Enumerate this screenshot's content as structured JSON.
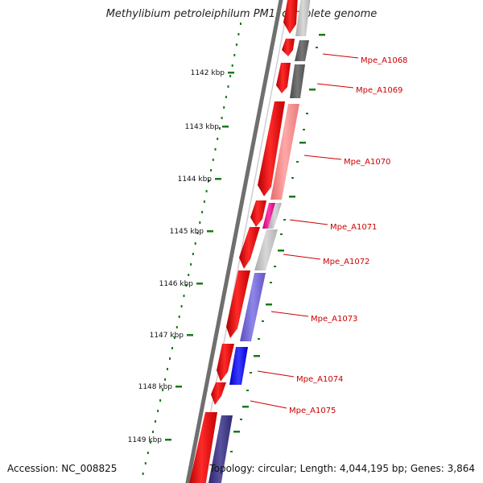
{
  "title": "Methylibium petroleiphilum PM1, complete genome",
  "footer": {
    "accession": "Accession: NC_008825",
    "topology": "Topology: circular; Length: 4,044,195 bp; Genes: 3,864"
  },
  "scale_labels": [
    "1142 kbp",
    "1143 kbp",
    "1144 kbp",
    "1145 kbp",
    "1146 kbp",
    "1147 kbp",
    "1148 kbp",
    "1149 kbp"
  ],
  "gene_labels": [
    "Mpe_A1068",
    "Mpe_A1069",
    "Mpe_A1070",
    "Mpe_A1071",
    "Mpe_A1072",
    "Mpe_A1073",
    "Mpe_A1074",
    "Mpe_A1075"
  ],
  "colors": {
    "backbone": "#777777",
    "forward_cds": "#ff0000",
    "label": "#cc0000",
    "tick": "#1a7a1a"
  }
}
